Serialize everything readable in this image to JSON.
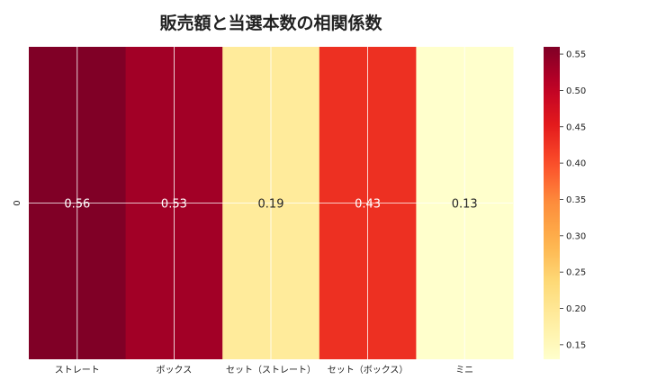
{
  "chart_data": {
    "type": "heatmap",
    "title": "販売額と当選本数の相関係数",
    "row_labels": [
      "0"
    ],
    "categories": [
      "ストレート",
      "ボックス",
      "セット（ストレート）",
      "セット（ボックス）",
      "ミニ"
    ],
    "values": [
      0.56,
      0.53,
      0.19,
      0.43,
      0.13
    ],
    "value_labels": [
      "0.56",
      "0.53",
      "0.19",
      "0.43",
      "0.13"
    ],
    "colorbar": {
      "min": 0.13,
      "max": 0.56,
      "ticks": [
        0.15,
        0.2,
        0.25,
        0.3,
        0.35,
        0.4,
        0.45,
        0.5,
        0.55
      ],
      "tick_labels": [
        "0.15",
        "0.20",
        "0.25",
        "0.30",
        "0.35",
        "0.40",
        "0.45",
        "0.50",
        "0.55"
      ],
      "colormap": "YlOrRd"
    },
    "grid": true
  }
}
